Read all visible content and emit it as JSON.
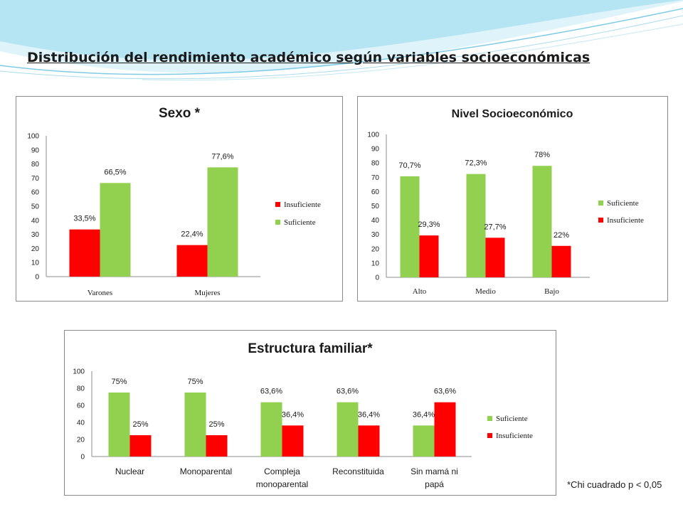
{
  "slide": {
    "title": "Distribución del rendimiento académico según variables socioeconómicas",
    "footnote": "*Chi cuadrado  p < 0,05"
  },
  "colors": {
    "red": "#ff0000",
    "green": "#92d050",
    "wave": "#8fd3ea"
  },
  "chart_data": [
    {
      "type": "bar",
      "title": "Sexo *",
      "categories": [
        "Varones",
        "Mujeres"
      ],
      "series": [
        {
          "name": "Insuficiente",
          "color": "#ff0000",
          "values": [
            33.5,
            22.4
          ],
          "labels": [
            "33,5%",
            "22,4%"
          ]
        },
        {
          "name": "Suficiente",
          "color": "#92d050",
          "values": [
            66.5,
            77.6
          ],
          "labels": [
            "66,5%",
            "77,6%"
          ]
        }
      ],
      "ylim": [
        0,
        100
      ],
      "yticks": [
        "0",
        "10",
        "20",
        "30",
        "40",
        "50",
        "60",
        "70",
        "80",
        "90",
        "100"
      ],
      "legend": "right"
    },
    {
      "type": "bar",
      "title": "Nivel Socioeconómico",
      "categories": [
        "Alto",
        "Medio",
        "Bajo"
      ],
      "series": [
        {
          "name": "Suficiente",
          "color": "#92d050",
          "values": [
            70.7,
            72.3,
            78
          ],
          "labels": [
            "70,7%",
            "72,3%",
            "78%"
          ]
        },
        {
          "name": "Insuficiente",
          "color": "#ff0000",
          "values": [
            29.3,
            27.7,
            22
          ],
          "labels": [
            "29,3%",
            "27,7%",
            "22%"
          ]
        }
      ],
      "ylim": [
        0,
        100
      ],
      "yticks": [
        "0",
        "10",
        "20",
        "30",
        "40",
        "50",
        "60",
        "70",
        "80",
        "90",
        "100"
      ],
      "legend": "right"
    },
    {
      "type": "bar",
      "title": "Estructura familiar*",
      "categories": [
        "Nuclear",
        "Monoparental",
        "Compleja monoparental",
        "Reconstituida",
        "Sin mamá ni papá"
      ],
      "category_lines": [
        [
          "Nuclear"
        ],
        [
          "Monoparental"
        ],
        [
          "Compleja",
          "monoparental"
        ],
        [
          "Reconstituida"
        ],
        [
          "Sin mamá ni",
          "papá"
        ]
      ],
      "series": [
        {
          "name": "Suficiente",
          "color": "#92d050",
          "values": [
            75,
            75,
            63.6,
            63.6,
            36.4
          ],
          "labels": [
            "75%",
            "75%",
            "63,6%",
            "63,6%",
            "36,4%"
          ]
        },
        {
          "name": "Insuficiente",
          "color": "#ff0000",
          "values": [
            25,
            25,
            36.4,
            36.4,
            63.6
          ],
          "labels": [
            "25%",
            "25%",
            "36,4%",
            "36,4%",
            "63,6%"
          ]
        }
      ],
      "ylim": [
        0,
        100
      ],
      "yticks": [
        "0",
        "20",
        "40",
        "60",
        "80",
        "100"
      ],
      "legend": "right"
    }
  ]
}
